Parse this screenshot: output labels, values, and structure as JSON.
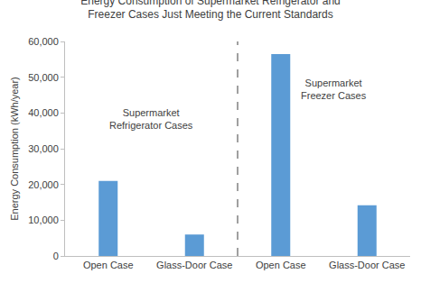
{
  "chart_data": {
    "type": "bar",
    "title": "Energy Consumption of Supermarket Refrigerator and\nFreezer Cases Just Meeting the Current Standards",
    "y_label": "Energy Consumption (kWh/year)",
    "categories": [
      "Open Case",
      "Glass-Door Case",
      "Open Case",
      "Glass-Door Case"
    ],
    "values": [
      21000,
      6000,
      56500,
      14200
    ],
    "color": "#5b9bd5",
    "ylim": [
      0,
      60000
    ],
    "yticks": [
      0,
      {
        "value": 10000,
        "label": "10,000"
      },
      {
        "value": 20000,
        "label": "20,000"
      },
      {
        "value": 30000,
        "label": "30,000"
      },
      {
        "value": 40000,
        "label": "40,000"
      },
      {
        "value": 50000,
        "label": "50,000"
      },
      {
        "value": 60000,
        "label": "60,000"
      }
    ],
    "grid": false,
    "annotations": [
      "Supermarket\nRefrigerator Cases",
      "Supermarket\nFreezer Cases"
    ]
  }
}
